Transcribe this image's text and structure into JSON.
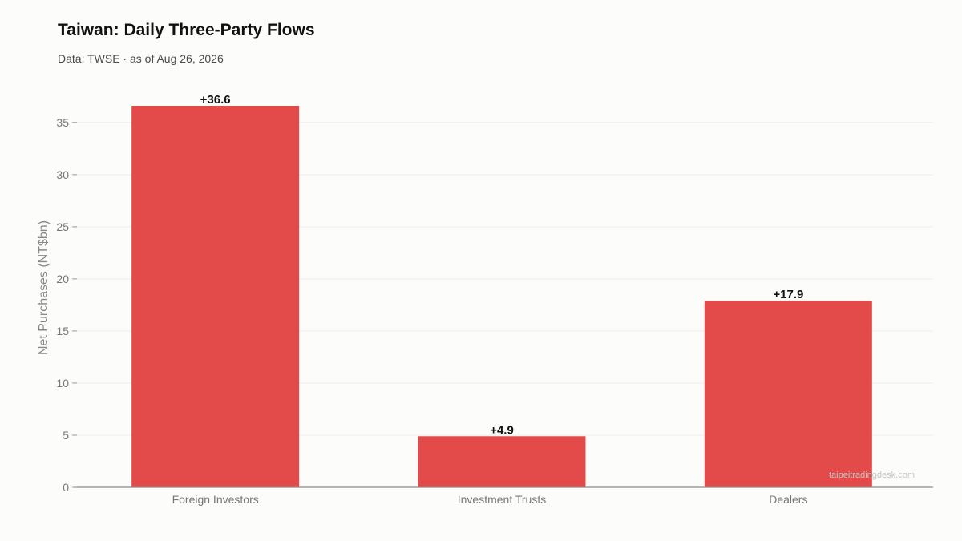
{
  "chart_data": {
    "type": "bar",
    "title": "Taiwan: Daily Three-Party Flows",
    "subtitle": "Data: TWSE · as of Aug 26, 2026",
    "xlabel": "",
    "ylabel": "Net Purchases (NT$bn)",
    "categories": [
      "Foreign Investors",
      "Investment Trusts",
      "Dealers"
    ],
    "values": [
      36.6,
      4.9,
      17.9
    ],
    "data_labels": [
      "+36.6",
      "+4.9",
      "+17.9"
    ],
    "ylim": [
      0,
      36.6
    ],
    "yticks": [
      0,
      5,
      10,
      15,
      20,
      25,
      30,
      35
    ],
    "grid": true,
    "legend": "none",
    "bar_color": "#e34a4a",
    "watermark": "taipeitradingdesk.com"
  }
}
